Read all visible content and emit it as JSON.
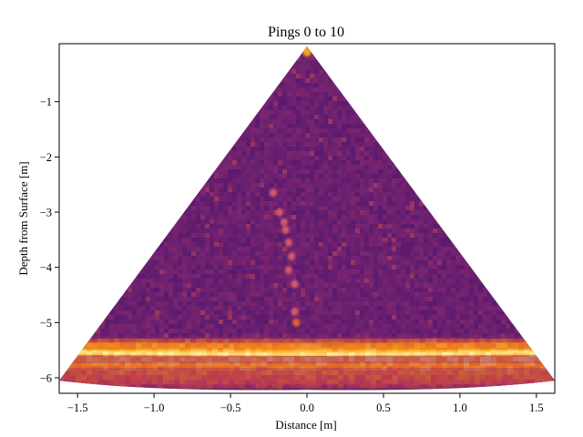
{
  "chart_data": {
    "type": "heatmap",
    "title": "Pings 0 to 10",
    "xlabel": "Distance [m]",
    "ylabel": "Depth from Surface [m]",
    "xlim": [
      -1.62,
      1.62
    ],
    "ylim": [
      -6.28,
      0.05
    ],
    "x_ticks": [
      -1.5,
      -1.0,
      -0.5,
      0.0,
      0.5,
      1.0,
      1.5
    ],
    "x_tick_labels": [
      "−1.5",
      "−1.0",
      "−0.5",
      "0.0",
      "0.5",
      "1.0",
      "1.5"
    ],
    "y_ticks": [
      -1,
      -2,
      -3,
      -4,
      -5,
      -6
    ],
    "y_tick_labels": [
      "−1",
      "−2",
      "−3",
      "−4",
      "−5",
      "−6"
    ],
    "colormap": "inferno",
    "colormap_stops": [
      "#000004",
      "#420a68",
      "#932667",
      "#dd513a",
      "#fca50a",
      "#fcffa4"
    ],
    "background_color": "#6e2a78",
    "sector": {
      "apex": [
        0.0,
        0.0
      ],
      "left_edge_end": [
        -1.62,
        -6.05
      ],
      "right_edge_end": [
        1.62,
        -6.05
      ],
      "range_max": 6.2
    },
    "seabed_band": {
      "depth_top": -5.3,
      "depth_peak": -5.58,
      "depth_bottom": -6.15
    },
    "target_column": [
      {
        "x": -0.22,
        "y": -2.65
      },
      {
        "x": -0.18,
        "y": -3.0
      },
      {
        "x": -0.15,
        "y": -3.18
      },
      {
        "x": -0.14,
        "y": -3.32
      },
      {
        "x": -0.12,
        "y": -3.55
      },
      {
        "x": -0.1,
        "y": -3.8
      },
      {
        "x": -0.12,
        "y": -4.05
      },
      {
        "x": -0.08,
        "y": -4.3
      },
      {
        "x": -0.08,
        "y": -4.8
      },
      {
        "x": -0.07,
        "y": -5.0
      }
    ],
    "grid": false,
    "legend": "none"
  }
}
